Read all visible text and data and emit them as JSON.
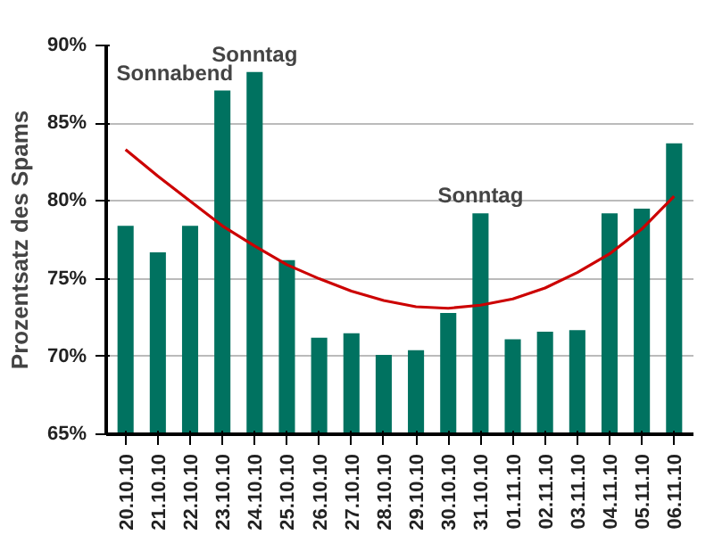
{
  "chart_data": {
    "type": "bar",
    "ylabel": "Prozentsatz des Spams",
    "categories": [
      "20.10.10",
      "21.10.10",
      "22.10.10",
      "23.10.10",
      "24.10.10",
      "25.10.10",
      "26.10.10",
      "27.10.10",
      "28.10.10",
      "29.10.10",
      "30.10.10",
      "31.10.10",
      "01.11.10",
      "02.11.10",
      "03.11.10",
      "04.11.10",
      "05.11.10",
      "06.11.10"
    ],
    "series": [
      {
        "color": "#007260",
        "values": [
          78.4,
          76.7,
          78.4,
          87.1,
          88.3,
          76.2,
          71.2,
          71.5,
          70.1,
          70.4,
          72.8,
          79.2,
          71.1,
          71.6,
          71.7,
          79.2,
          79.5,
          83.7
        ]
      },
      {
        "type": "line",
        "color": "#cc0000",
        "values": [
          83.3,
          81.6,
          80.0,
          78.4,
          77.1,
          75.9,
          75.0,
          74.2,
          73.6,
          73.2,
          73.1,
          73.3,
          73.7,
          74.4,
          75.4,
          76.6,
          78.2,
          80.3
        ]
      }
    ],
    "ylim": [
      65,
      90
    ],
    "yticks": [
      {
        "value": 65,
        "label": "65%"
      },
      {
        "value": 70,
        "label": "70%"
      },
      {
        "value": 75,
        "label": "75%"
      },
      {
        "value": 80,
        "label": "80%"
      },
      {
        "value": 85,
        "label": "85%"
      },
      {
        "value": 90,
        "label": "90%"
      }
    ],
    "grid": "y",
    "annotations": [
      {
        "text": "Sonnabend",
        "x": "23.10.10",
        "y": 87.1
      },
      {
        "text": "Sonntag",
        "x": "24.10.10",
        "y": 88.3
      },
      {
        "text": "Sonntag",
        "x": "31.10.10",
        "y": 79.2
      }
    ]
  }
}
